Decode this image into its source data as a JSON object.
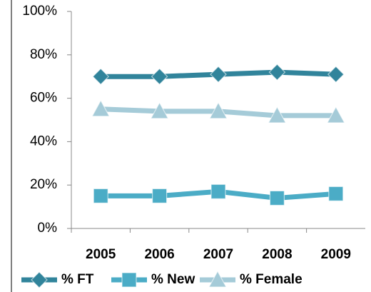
{
  "chart_data": {
    "type": "line",
    "categories": [
      "2005",
      "2006",
      "2007",
      "2008",
      "2009"
    ],
    "series": [
      {
        "name": "% FT",
        "color": "#31849b",
        "marker": "diamond",
        "values": [
          70,
          70,
          71,
          72,
          71
        ]
      },
      {
        "name": "% New",
        "color": "#4bacc6",
        "marker": "square",
        "values": [
          15,
          15,
          17,
          14,
          16
        ]
      },
      {
        "name": "% Female",
        "color": "#a5cbd8",
        "marker": "triangle",
        "values": [
          55,
          54,
          54,
          52,
          52
        ]
      }
    ],
    "ylim": [
      0,
      100
    ],
    "yticks": [
      {
        "value": 0,
        "label": "0%"
      },
      {
        "value": 20,
        "label": "20%"
      },
      {
        "value": 40,
        "label": "40%"
      },
      {
        "value": 60,
        "label": "60%"
      },
      {
        "value": 80,
        "label": "80%"
      },
      {
        "value": 100,
        "label": "100%"
      }
    ],
    "legend": "bottom"
  }
}
